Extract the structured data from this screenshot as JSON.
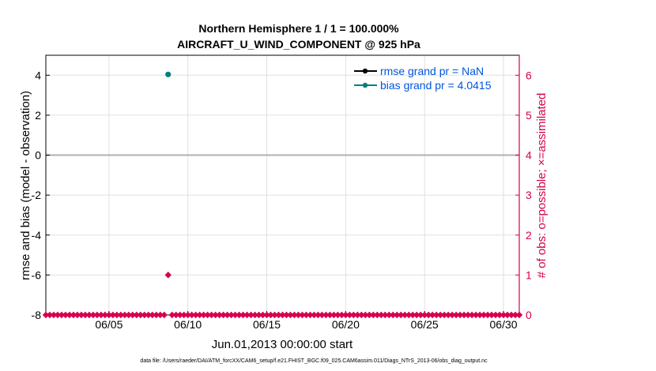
{
  "chart_data": {
    "type": "line",
    "title": "Northern Hemisphere 1 / 1 = 100.000%",
    "subtitle": "AIRCRAFT_U_WIND_COMPONENT @ 925 hPa",
    "xlabel": "Jun.01,2013 00:00:00 start",
    "ylabel": "rmse and bias (model - observation)",
    "y2label": "# of obs: o=possible; ×=assimilated",
    "x_ticks": [
      "06/05",
      "06/10",
      "06/15",
      "06/20",
      "06/25",
      "06/30"
    ],
    "x_tick_values": [
      5,
      10,
      15,
      20,
      25,
      30
    ],
    "xlim": [
      1,
      31
    ],
    "ylim": [
      -8,
      5
    ],
    "y_ticks": [
      "4",
      "2",
      "0",
      "-2",
      "-4",
      "-6",
      "-8"
    ],
    "y_tick_values": [
      4,
      2,
      0,
      -2,
      -4,
      -6,
      -8
    ],
    "y2lim": [
      0,
      6.5
    ],
    "y2_ticks": [
      "6",
      "5",
      "4",
      "3",
      "2",
      "1",
      "0"
    ],
    "y2_tick_values": [
      6,
      5,
      4,
      3,
      2,
      1,
      0
    ],
    "grid": true,
    "zero_line": true,
    "legend_position": "top-right",
    "series": [
      {
        "name": "rmse grand pr = NaN",
        "color": "#000000",
        "axis": "left",
        "points": []
      },
      {
        "name": "bias grand pr = 4.0415",
        "color": "#008080",
        "axis": "left",
        "points": [
          [
            8.75,
            4.04
          ]
        ]
      },
      {
        "color": "#d6004f",
        "axis": "right",
        "marker": "diamond",
        "points_x": [
          1.0,
          1.25,
          1.5,
          1.75,
          2.0,
          2.25,
          2.5,
          2.75,
          3.0,
          3.25,
          3.5,
          3.75,
          4.0,
          4.25,
          4.5,
          4.75,
          5.0,
          5.25,
          5.5,
          5.75,
          6.0,
          6.25,
          6.5,
          6.75,
          7.0,
          7.25,
          7.5,
          7.75,
          8.0,
          8.25,
          8.5,
          8.75,
          9.0,
          9.25,
          9.5,
          9.75,
          10.0,
          10.25,
          10.5,
          10.75,
          11.0,
          11.25,
          11.5,
          11.75,
          12.0,
          12.25,
          12.5,
          12.75,
          13.0,
          13.25,
          13.5,
          13.75,
          14.0,
          14.25,
          14.5,
          14.75,
          15.0,
          15.25,
          15.5,
          15.75,
          16.0,
          16.25,
          16.5,
          16.75,
          17.0,
          17.25,
          17.5,
          17.75,
          18.0,
          18.25,
          18.5,
          18.75,
          19.0,
          19.25,
          19.5,
          19.75,
          20.0,
          20.25,
          20.5,
          20.75,
          21.0,
          21.25,
          21.5,
          21.75,
          22.0,
          22.25,
          22.5,
          22.75,
          23.0,
          23.25,
          23.5,
          23.75,
          24.0,
          24.25,
          24.5,
          24.75,
          25.0,
          25.25,
          25.5,
          25.75,
          26.0,
          26.25,
          26.5,
          26.75,
          27.0,
          27.25,
          27.5,
          27.75,
          28.0,
          28.25,
          28.5,
          28.75,
          29.0,
          29.25,
          29.5,
          29.75,
          30.0,
          30.25,
          30.5,
          30.75,
          31.0
        ],
        "points_y_default": 0,
        "nonzero": [
          [
            8.75,
            1
          ]
        ]
      }
    ],
    "colors": {
      "left_axis": "#000000",
      "right_axis": "#d6004f",
      "legend_text": "#0055dd",
      "grid": "#e0e0e0",
      "zero_line": "#b0b0b0"
    }
  },
  "footnote": "data file: /Users/raeder/DAI/ATM_forcXX/CAM6_setup/f.e21.FHIST_BGC.f09_025.CAM6assim.011/Diags_NTrS_2013-06/obs_diag_output.nc"
}
